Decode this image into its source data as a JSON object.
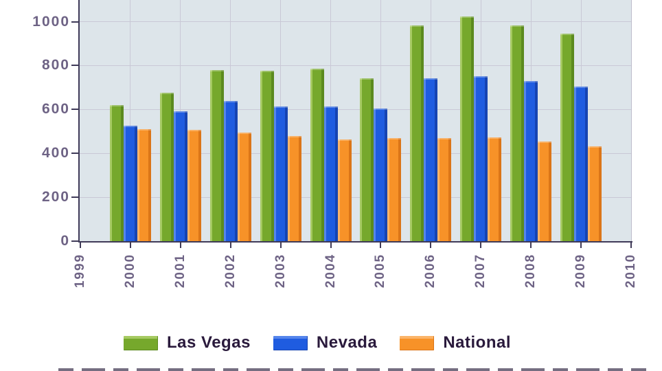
{
  "chart_data": {
    "type": "bar",
    "title": "",
    "xlabel": "",
    "ylabel": "",
    "categories": [
      "2000",
      "2001",
      "2002",
      "2003",
      "2004",
      "2005",
      "2006",
      "2007",
      "2008",
      "2009"
    ],
    "series": [
      {
        "name": "Las Vegas",
        "color": "#76a82c",
        "color_light": "#a6ca62",
        "color_dark": "#5b8a1e",
        "values": [
          620,
          675,
          780,
          775,
          785,
          743,
          982,
          1022,
          982,
          945
        ]
      },
      {
        "name": "Nevada",
        "color": "#1f5ce0",
        "color_light": "#5585ec",
        "color_dark": "#1644b2",
        "values": [
          525,
          592,
          638,
          613,
          614,
          605,
          742,
          752,
          728,
          705
        ]
      },
      {
        "name": "National",
        "color": "#f79228",
        "color_light": "#fbb469",
        "color_dark": "#db7517",
        "values": [
          510,
          507,
          495,
          478,
          462,
          470,
          470,
          472,
          455,
          433
        ]
      }
    ],
    "x_axis": {
      "tick_labels": [
        "1999",
        "2000",
        "2001",
        "2002",
        "2003",
        "2004",
        "2005",
        "2006",
        "2007",
        "2008",
        "2009",
        "2010"
      ]
    },
    "y_axis": {
      "tick_labels": [
        "0",
        "200",
        "400",
        "600",
        "800",
        "1000"
      ],
      "min": 0,
      "max": 1100,
      "note": "top of plot clipped by screenshot edge"
    },
    "grid": "on",
    "legend_position": "bottom"
  },
  "colors": {
    "plot_background": "#dde5ea",
    "gridline": "#c9c8d6",
    "axis": "#3f3a58",
    "tick_label_text": "#6e6385",
    "legend_text": "#2a1a3c",
    "page_background": "#ffffff"
  }
}
